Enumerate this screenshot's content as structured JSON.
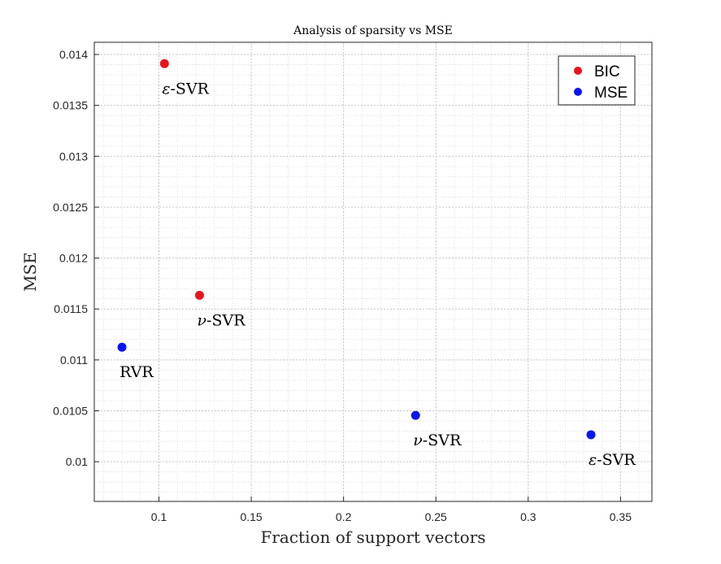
{
  "chart_data": {
    "type": "scatter",
    "title": "Analysis of sparsity vs MSE",
    "xlabel": "Fraction of support vectors",
    "ylabel": "MSE",
    "xlim": [
      0.065,
      0.367
    ],
    "ylim": [
      0.00961,
      0.01412
    ],
    "x_ticks": [
      0.1,
      0.15,
      0.2,
      0.25,
      0.3,
      0.35
    ],
    "x_tick_labels": [
      "0.1",
      "0.15",
      "0.2",
      "0.25",
      "0.3",
      "0.35"
    ],
    "y_ticks": [
      0.01,
      0.0105,
      0.011,
      0.0115,
      0.012,
      0.0125,
      0.013,
      0.0135,
      0.014
    ],
    "y_tick_labels": [
      "0.01",
      "0.0105",
      "0.011",
      "0.0115",
      "0.012",
      "0.0125",
      "0.013",
      "0.0135",
      "0.014"
    ],
    "grid": "major and minor, dotted",
    "legend_position": "top-right",
    "series": [
      {
        "name": "BIC",
        "color": "#e8141c",
        "points": [
          {
            "x": 0.103,
            "y": 0.01391,
            "label_prefix": "ε",
            "label_suffix": "-SVR"
          },
          {
            "x": 0.122,
            "y": 0.011635,
            "label_prefix": "ν",
            "label_suffix": "-SVR"
          }
        ]
      },
      {
        "name": "MSE",
        "color": "#0a14f0",
        "points": [
          {
            "x": 0.08,
            "y": 0.011125,
            "label_prefix": "",
            "label_suffix": "RVR"
          },
          {
            "x": 0.239,
            "y": 0.010455,
            "label_prefix": "ν",
            "label_suffix": "-SVR"
          },
          {
            "x": 0.334,
            "y": 0.010265,
            "label_prefix": "ε",
            "label_suffix": "-SVR"
          }
        ]
      }
    ]
  }
}
